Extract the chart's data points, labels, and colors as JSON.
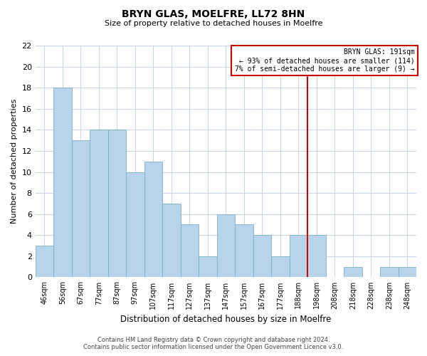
{
  "title": "BRYN GLAS, MOELFRE, LL72 8HN",
  "subtitle": "Size of property relative to detached houses in Moelfre",
  "xlabel": "Distribution of detached houses by size in Moelfre",
  "ylabel": "Number of detached properties",
  "bin_labels": [
    "46sqm",
    "56sqm",
    "67sqm",
    "77sqm",
    "87sqm",
    "97sqm",
    "107sqm",
    "117sqm",
    "127sqm",
    "137sqm",
    "147sqm",
    "157sqm",
    "167sqm",
    "177sqm",
    "188sqm",
    "198sqm",
    "208sqm",
    "218sqm",
    "228sqm",
    "238sqm",
    "248sqm"
  ],
  "bar_values": [
    3,
    18,
    13,
    14,
    14,
    10,
    11,
    7,
    5,
    2,
    6,
    5,
    4,
    2,
    4,
    4,
    0,
    1,
    0,
    1,
    1
  ],
  "bar_color": "#b8d4ea",
  "bar_edge_color": "#7aafc8",
  "ylim": [
    0,
    22
  ],
  "yticks": [
    0,
    2,
    4,
    6,
    8,
    10,
    12,
    14,
    16,
    18,
    20,
    22
  ],
  "reference_line_index": 14,
  "reference_line_label": "BRYN GLAS: 191sqm",
  "annotation_line1": "← 93% of detached houses are smaller (114)",
  "annotation_line2": "7% of semi-detached houses are larger (9) →",
  "annotation_box_color": "#ffffff",
  "annotation_box_edge_color": "#cc0000",
  "reference_line_color": "#cc0000",
  "footer_line1": "Contains HM Land Registry data © Crown copyright and database right 2024.",
  "footer_line2": "Contains public sector information licensed under the Open Government Licence v3.0.",
  "background_color": "#ffffff",
  "grid_color": "#c8d4e4"
}
